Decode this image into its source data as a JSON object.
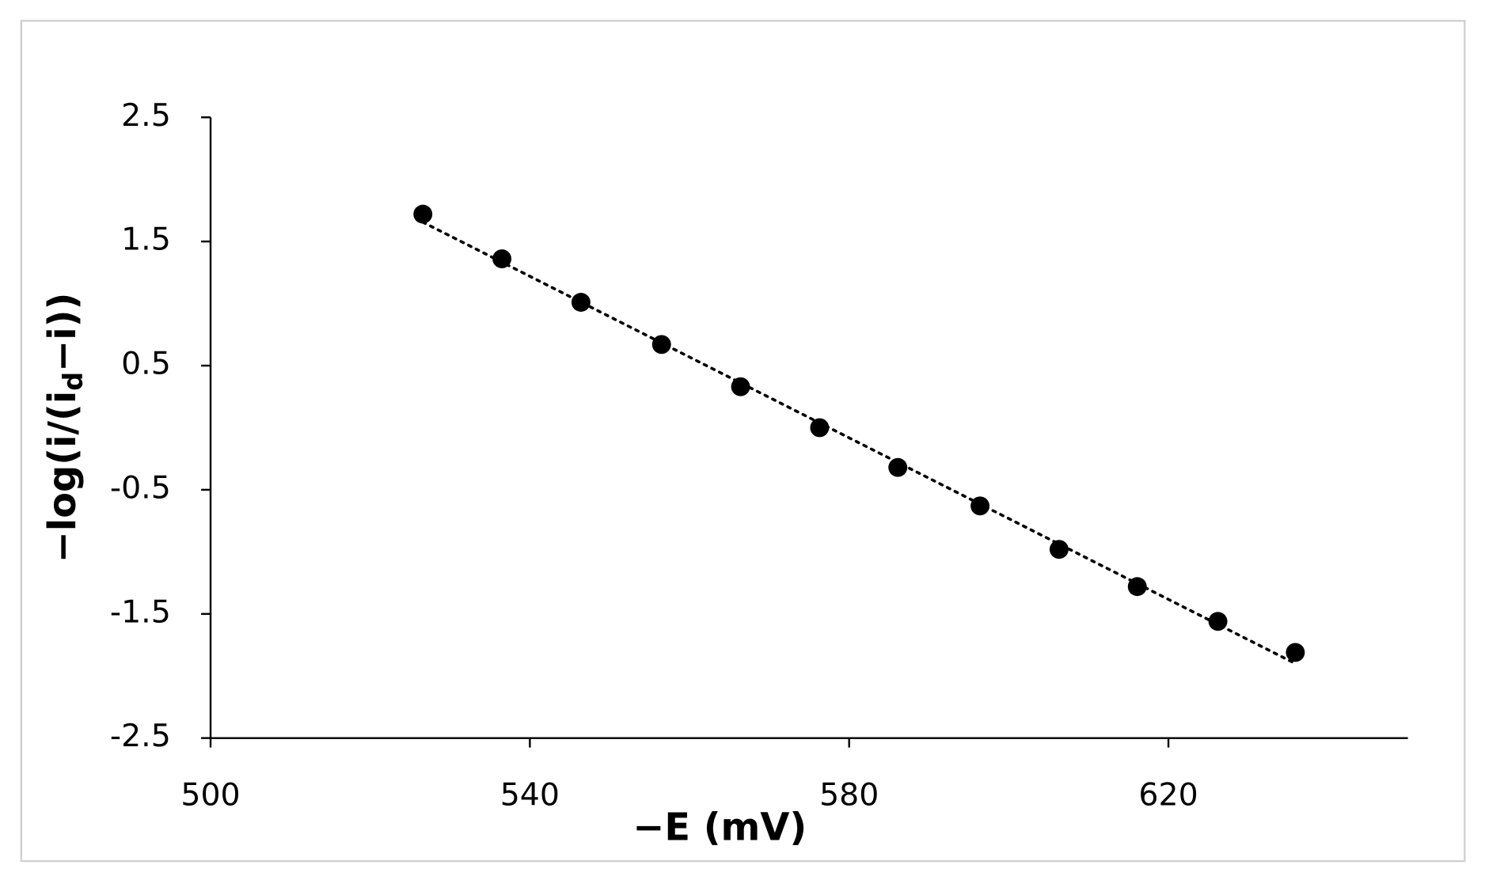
{
  "chart_data": {
    "type": "scatter",
    "xlabel": "−E (mV)",
    "ylabel_parts": [
      "−log(i/(i",
      "d",
      "−i))"
    ],
    "x": [
      526.6,
      536.5,
      546.4,
      556.5,
      566.4,
      576.3,
      586.1,
      596.4,
      606.3,
      616.1,
      626.2,
      635.9
    ],
    "values": [
      1.72,
      1.36,
      1.01,
      0.67,
      0.33,
      0.0,
      -0.32,
      -0.63,
      -0.98,
      -1.28,
      -1.56,
      -1.81
    ],
    "color": "#000000",
    "trendline": "linear",
    "xlim": [
      500,
      650
    ],
    "ylim": [
      -2.5,
      2.5
    ],
    "xticks": [
      500,
      540,
      580,
      620
    ],
    "yticks": [
      2.5,
      1.5,
      0.5,
      -0.5,
      -1.5,
      -2.5
    ],
    "grid": false
  }
}
